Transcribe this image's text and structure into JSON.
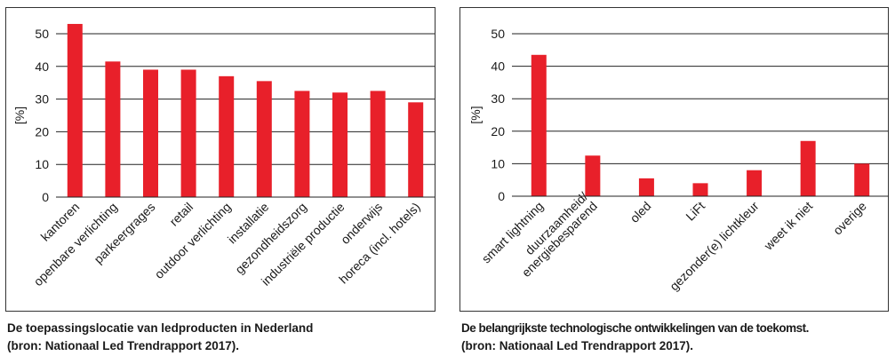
{
  "chart_data": [
    {
      "type": "bar",
      "ylabel": "[%]",
      "ylim": [
        0,
        50
      ],
      "yticks": [
        0,
        10,
        20,
        30,
        40,
        50
      ],
      "grid": true,
      "bar_color": "#e8202a",
      "categories": [
        "kantoren",
        "openbare verlichting",
        "parkeergrages",
        "retail",
        "outdoor verlichting",
        "installatie",
        "gezondheidszorg",
        "industriële productie",
        "onderwijs",
        "horeca (incl. hotels)"
      ],
      "values": [
        53,
        41.5,
        39,
        39,
        37,
        35.5,
        32.5,
        32,
        32.5,
        29
      ],
      "caption": [
        "De toepassingslocatie van ledproducten in Nederland",
        "(bron: Nationaal Led Trendrapport 2017)."
      ]
    },
    {
      "type": "bar",
      "ylabel": "[%]",
      "ylim": [
        0,
        50
      ],
      "yticks": [
        0,
        10,
        20,
        30,
        40,
        50
      ],
      "grid": true,
      "bar_color": "#e8202a",
      "categories": [
        "smart lightning",
        "duurzaamheid/\nenergiebesparend",
        "oled",
        "LiFt",
        "gezonder(e) lichtkleur",
        "weet ik niet",
        "overige"
      ],
      "values": [
        43.5,
        12.5,
        5.5,
        4,
        8,
        17,
        10
      ],
      "caption": [
        "De belangrijkste technologische ontwikkelingen van de toekomst.",
        "(bron: Nationaal Led Trendrapport 2017)."
      ]
    }
  ]
}
